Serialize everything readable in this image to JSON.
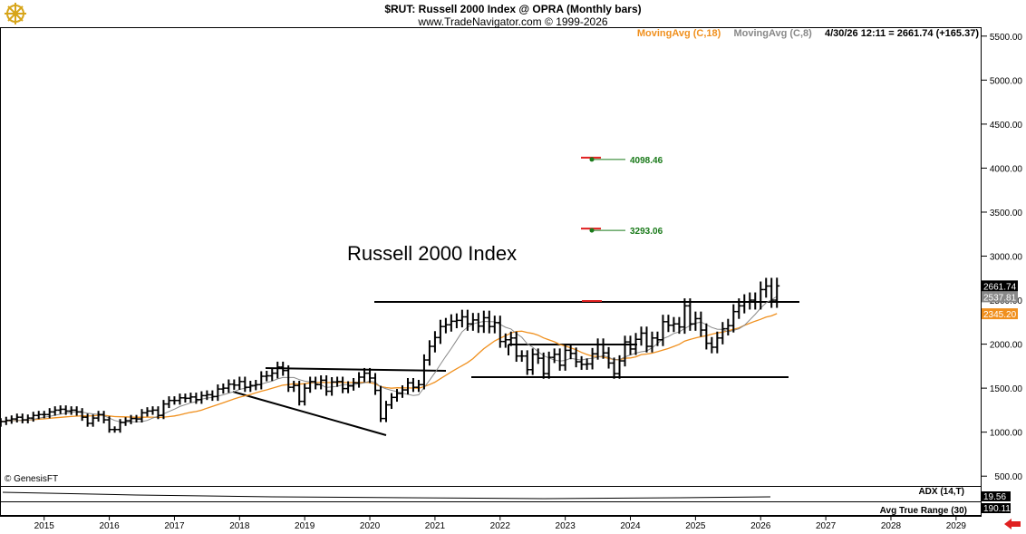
{
  "header": {
    "title": "$RUT:  Russell 2000 Index @ OPRA  (Monthly bars)",
    "subtitle": "www.TradeNavigator.com © 1999-2026"
  },
  "legend": {
    "ma18": "MovingAvg (C,18)",
    "ma8": "MovingAvg (C,8)",
    "quote": "4/30/26 12:11 = 2661.74 (+165.37)"
  },
  "colors": {
    "ma18": "#f0901e",
    "ma8": "#888888",
    "target": "#1a7a1a",
    "arrow": "#e02020"
  },
  "icons": {
    "logo": "ship-helm-icon",
    "nav": "red-left-arrow-icon"
  },
  "annotation": "Russell 2000 Index",
  "copyright": "© GenesisFT",
  "targets": [
    {
      "label": "4098.46",
      "value": 4098.46
    },
    {
      "label": "3293.06",
      "value": 3293.06
    }
  ],
  "price_labels": [
    {
      "text": "2661.74",
      "value": 2661.74,
      "bg": "#000000"
    },
    {
      "text": "2537.81",
      "value": 2537.81,
      "bg": "#888888"
    },
    {
      "text": "2345.20",
      "value": 2345.2,
      "bg": "#f0901e"
    }
  ],
  "indicators": {
    "adx_label": "ADX (14,T)",
    "adx_value": "19.56",
    "atr_label": "Avg True Range (30)",
    "atr_value": "190.11"
  },
  "chart_data": {
    "type": "bar",
    "title": "$RUT:  Russell 2000 Index @ OPRA  (Monthly bars)",
    "y_ticks": [
      "500.00",
      "1000.00",
      "1500.00",
      "2000.00",
      "2500.00",
      "3000.00",
      "3500.00",
      "4000.00",
      "4500.00",
      "5000.00",
      "5500.00"
    ],
    "ylim": [
      430,
      5560
    ],
    "x_ticks": [
      "2015",
      "2016",
      "2017",
      "2018",
      "2019",
      "2020",
      "2021",
      "2022",
      "2023",
      "2024",
      "2025",
      "2026",
      "2027",
      "2028",
      "2029"
    ],
    "xlim": [
      2014.35,
      2029.35
    ],
    "grid": false,
    "monthly_close": [
      {
        "x": 2014.5,
        "values": [
          1150,
          1120,
          1130,
          1100,
          1120,
          1135,
          1150,
          1170,
          1140,
          1160,
          1190,
          1200
        ]
      },
      {
        "x": 2015.5,
        "values": [
          1200,
          1230,
          1250,
          1260,
          1240,
          1250,
          1230,
          1170,
          1100,
          1160,
          1200,
          1140
        ]
      },
      {
        "x": 2016.5,
        "values": [
          1030,
          1030,
          1110,
          1130,
          1155,
          1150,
          1220,
          1240,
          1250,
          1190,
          1320,
          1360
        ]
      },
      {
        "x": 2017.5,
        "values": [
          1360,
          1390,
          1385,
          1400,
          1370,
          1415,
          1425,
          1405,
          1490,
          1500,
          1545,
          1535
        ]
      },
      {
        "x": 2018.5,
        "values": [
          1575,
          1510,
          1530,
          1540,
          1635,
          1640,
          1670,
          1740,
          1700,
          1510,
          1530,
          1350
        ]
      },
      {
        "x": 2019.5,
        "values": [
          1500,
          1575,
          1540,
          1590,
          1465,
          1570,
          1575,
          1495,
          1525,
          1560,
          1625,
          1670
        ]
      },
      {
        "x": 2020.5,
        "values": [
          1615,
          1475,
          1155,
          1310,
          1395,
          1440,
          1480,
          1560,
          1510,
          1540,
          1820,
          1975
        ]
      },
      {
        "x": 2021.5,
        "values": [
          2075,
          2200,
          2220,
          2260,
          2270,
          2310,
          2230,
          2275,
          2205,
          2300,
          2200,
          2245
        ]
      },
      {
        "x": 2022.5,
        "values": [
          2030,
          2050,
          2070,
          1865,
          1865,
          1710,
          1885,
          1840,
          1665,
          1850,
          1885,
          1760
        ]
      },
      {
        "x": 2023.5,
        "values": [
          1930,
          1895,
          1800,
          1770,
          1775,
          1890,
          1995,
          1900,
          1785,
          1665,
          1810,
          2025
        ]
      },
      {
        "x": 2024.5,
        "values": [
          1945,
          2055,
          2125,
          1975,
          2070,
          2050,
          2255,
          2215,
          2230,
          2195,
          2435,
          2230
        ]
      },
      {
        "x": 2025.5,
        "values": [
          2290,
          2160,
          2010,
          1965,
          2070,
          2175,
          2210,
          2370,
          2435,
          2480,
          2500,
          2480
        ]
      },
      {
        "x": 2026.5,
        "values": [
          2620,
          2660,
          2500,
          2661.74
        ]
      }
    ],
    "series": [
      {
        "name": "MovingAvg (C,18)",
        "last": 2345.2
      },
      {
        "name": "MovingAvg (C,8)",
        "last": 2537.81
      }
    ]
  }
}
